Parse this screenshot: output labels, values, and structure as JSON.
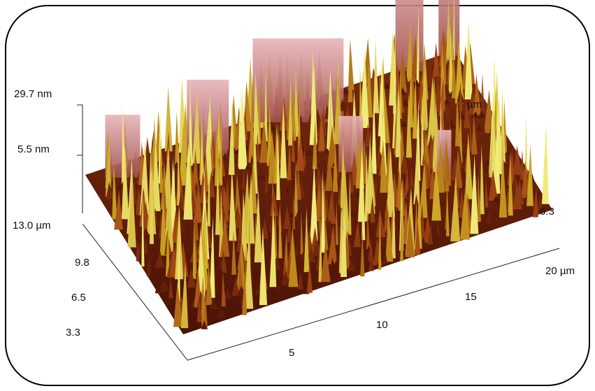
{
  "z_axis": {
    "ticks": [
      "29.7 nm",
      "5.5 nm"
    ]
  },
  "y_axis": {
    "ticks": [
      "13.0 µm",
      "9.8",
      "6.5",
      "3.3"
    ]
  },
  "x_axis": {
    "ticks": [
      "5",
      "10",
      "15",
      "20 µm"
    ]
  },
  "back_labels": [
    "µm",
    "6.3"
  ]
}
